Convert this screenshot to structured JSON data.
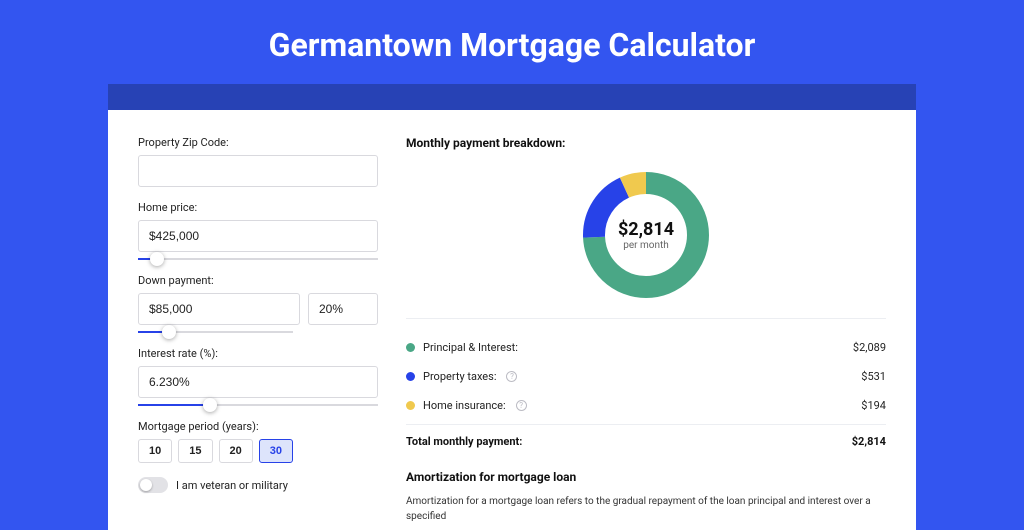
{
  "title": "Germantown Mortgage Calculator",
  "colors": {
    "page_bg": "#3355f0",
    "banner": "#2742b5",
    "card_bg": "#ffffff",
    "accent": "#2742e8",
    "input_border": "#d9d9de",
    "divider": "#eceef2"
  },
  "form": {
    "zip": {
      "label": "Property Zip Code:",
      "value": ""
    },
    "home_price": {
      "label": "Home price:",
      "value": "$425,000",
      "slider_pct": 8
    },
    "down_payment": {
      "label": "Down payment:",
      "amount": "$85,000",
      "pct": "20%",
      "slider_pct": 20
    },
    "interest_rate": {
      "label": "Interest rate (%):",
      "value": "6.230%",
      "slider_pct": 30
    },
    "period": {
      "label": "Mortgage period (years):",
      "options": [
        "10",
        "15",
        "20",
        "30"
      ],
      "selected": "30"
    },
    "veteran": {
      "label": "I am veteran or military",
      "on": false
    }
  },
  "breakdown": {
    "title": "Monthly payment breakdown:",
    "center_value": "$2,814",
    "center_label": "per month",
    "items": [
      {
        "label": "Principal & Interest:",
        "amount": "$2,089",
        "color": "#4aa786",
        "value": 2089,
        "help": false
      },
      {
        "label": "Property taxes:",
        "amount": "$531",
        "color": "#2742e8",
        "value": 531,
        "help": true
      },
      {
        "label": "Home insurance:",
        "amount": "$194",
        "color": "#f0c94e",
        "value": 194,
        "help": true
      }
    ],
    "total_label": "Total monthly payment:",
    "total_amount": "$2,814"
  },
  "donut": {
    "radius": 52,
    "stroke_width": 22
  },
  "amortization": {
    "title": "Amortization for mortgage loan",
    "text": "Amortization for a mortgage loan refers to the gradual repayment of the loan principal and interest over a specified"
  }
}
